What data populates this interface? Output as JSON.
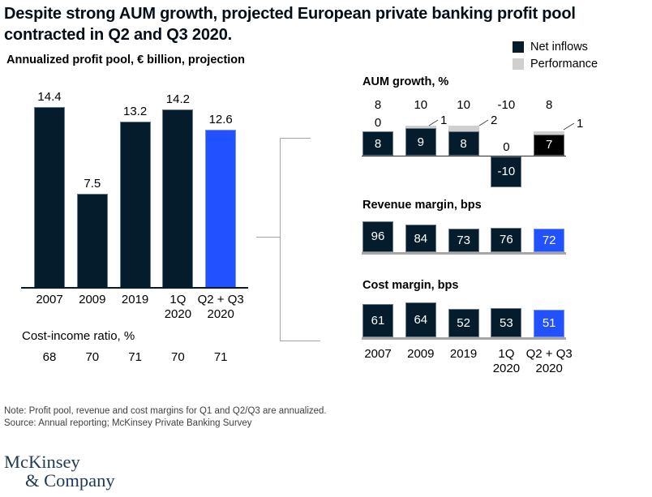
{
  "title": "Despite strong AUM growth, projected European private banking profit pool contracted in Q2 and Q3 2020.",
  "colors": {
    "navy": "#051C2C",
    "blue": "#2251FF",
    "black": "#000000",
    "performance_gray": "#CFCFCF",
    "baseline_gray": "#A6A6A6",
    "logo_navy": "#1F3A54"
  },
  "legend": {
    "items": [
      {
        "label": "Net inflows",
        "color": "#051C2C"
      },
      {
        "label": "Performance",
        "color": "#CFCFCF"
      }
    ]
  },
  "chart_data": [
    {
      "id": "profit_pool",
      "type": "bar",
      "title": "Annualized profit pool, € billion, projection",
      "categories": [
        "2007",
        "2009",
        "2019",
        "1Q\n2020",
        "Q2 + Q3\n2020"
      ],
      "values": [
        14.4,
        7.5,
        13.2,
        14.2,
        12.6
      ],
      "bar_colors": [
        "#051C2C",
        "#051C2C",
        "#051C2C",
        "#051C2C",
        "#2251FF"
      ],
      "value_labels_position": "above",
      "footer": {
        "label": "Cost-income ratio, %",
        "values": [
          "68",
          "70",
          "71",
          "70",
          "71"
        ]
      }
    },
    {
      "id": "aum_growth",
      "type": "stacked-bar",
      "title": "AUM growth, %",
      "categories": [
        "2007",
        "2009",
        "2019",
        "1Q\n2020",
        "Q2 + Q3\n2020"
      ],
      "series": [
        {
          "name": "Net inflows",
          "values": [
            8,
            9,
            8,
            -10,
            7
          ]
        },
        {
          "name": "Performance",
          "values": [
            0,
            1,
            2,
            0,
            1
          ]
        }
      ],
      "totals": [
        8,
        10,
        10,
        -10,
        8
      ],
      "bar_colors": [
        "#051C2C",
        "#051C2C",
        "#051C2C",
        "#051C2C",
        "#000000"
      ],
      "performance_color": "#CFCFCF",
      "legend_position": "top-right"
    },
    {
      "id": "revenue_margin",
      "type": "bar",
      "title": "Revenue margin, bps",
      "categories": [
        "2007",
        "2009",
        "2019",
        "1Q\n2020",
        "Q2 + Q3\n2020"
      ],
      "values": [
        96,
        84,
        73,
        76,
        72
      ],
      "bar_colors": [
        "#051C2C",
        "#051C2C",
        "#051C2C",
        "#051C2C",
        "#2251FF"
      ],
      "value_labels_position": "inside"
    },
    {
      "id": "cost_margin",
      "type": "bar",
      "title": "Cost margin, bps",
      "categories": [
        "2007",
        "2009",
        "2019",
        "1Q\n2020",
        "Q2 + Q3\n2020"
      ],
      "values": [
        61,
        64,
        52,
        53,
        51
      ],
      "bar_colors": [
        "#051C2C",
        "#051C2C",
        "#051C2C",
        "#051C2C",
        "#2251FF"
      ],
      "value_labels_position": "inside",
      "show_categories": true
    }
  ],
  "note": "Note: Profit pool, revenue and cost margins for Q1 and Q2/Q3 are annualized.",
  "source": "Source: Annual reporting; McKinsey Private Banking Survey",
  "logo": {
    "line1": "McKinsey",
    "line2": "& Company"
  }
}
